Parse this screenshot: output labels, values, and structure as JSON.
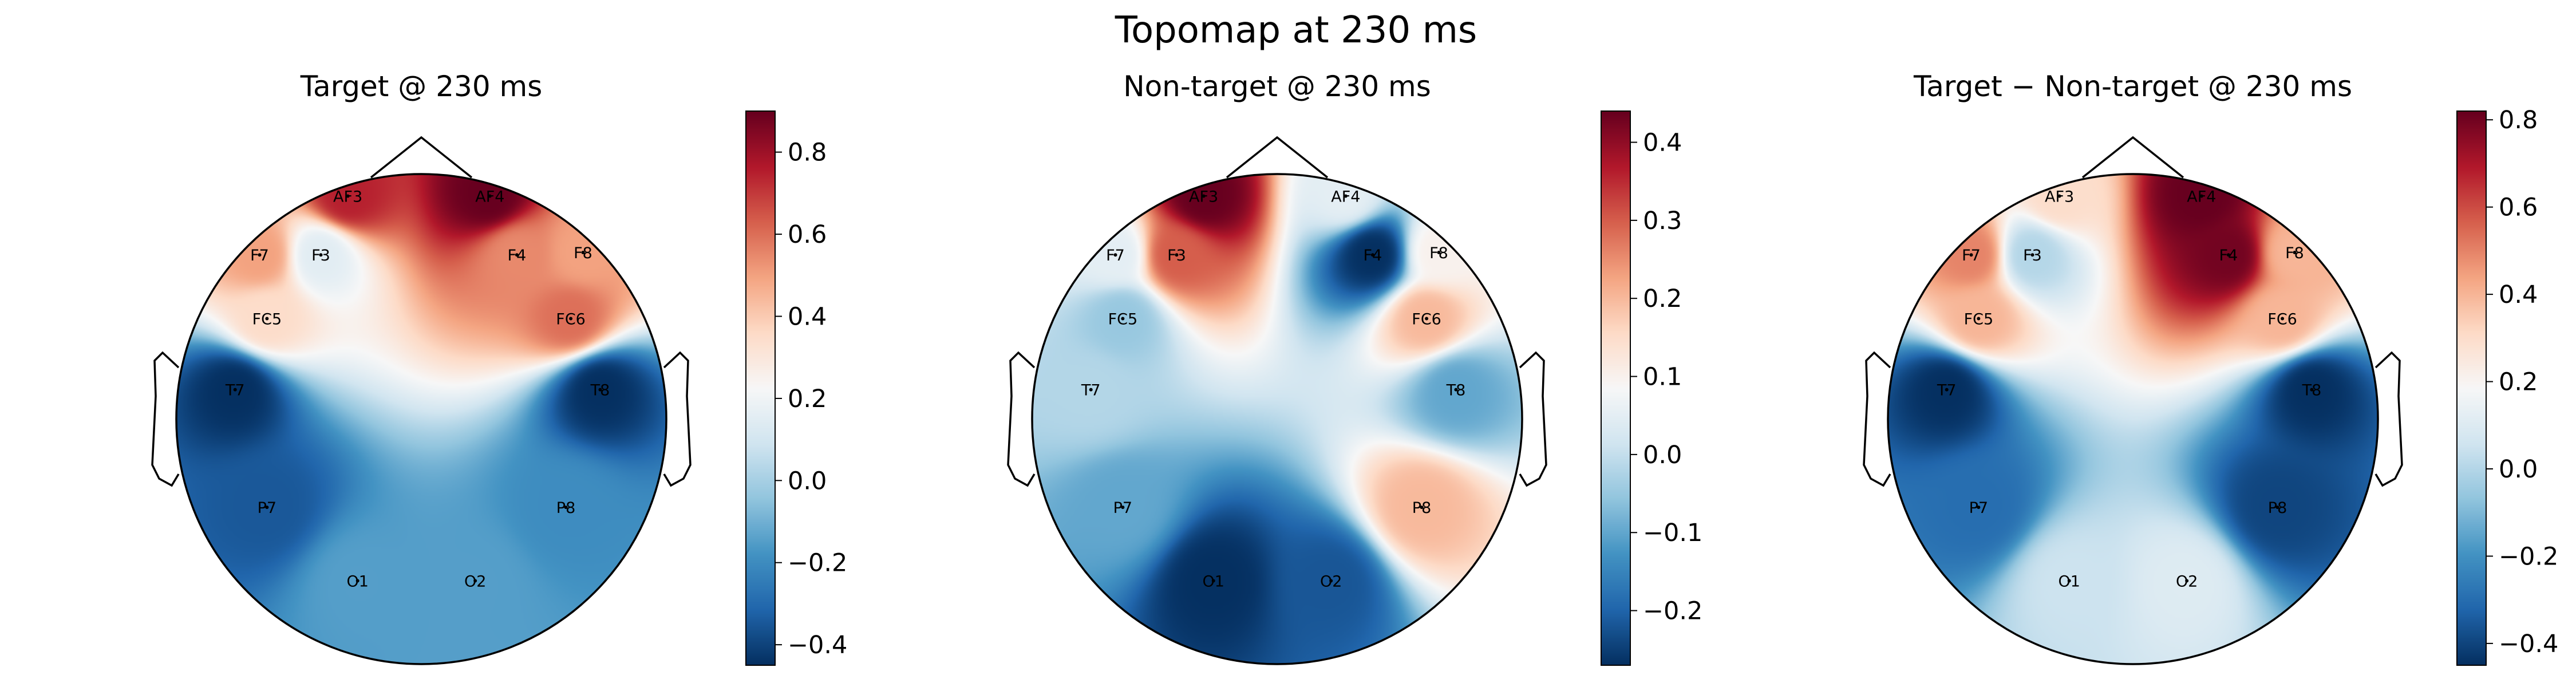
{
  "figure": {
    "title": "Topomap at 230 ms"
  },
  "chart_data": [
    {
      "type": "heatmap",
      "subtype": "topomap",
      "title": "Target @ 230 ms",
      "colormap": "RdBu_r",
      "clim": [
        -0.45,
        0.9
      ],
      "colorbar_ticks": [
        "−0.4",
        "−0.2",
        "0.0",
        "0.2",
        "0.4",
        "0.6",
        "0.8"
      ],
      "colorbar_tick_values": [
        -0.4,
        -0.2,
        0.0,
        0.2,
        0.4,
        0.6,
        0.8
      ],
      "electrodes": [
        {
          "name": "AF3",
          "value": 0.75
        },
        {
          "name": "AF4",
          "value": 0.9
        },
        {
          "name": "F7",
          "value": 0.5
        },
        {
          "name": "F3",
          "value": 0.15
        },
        {
          "name": "F4",
          "value": 0.55
        },
        {
          "name": "F8",
          "value": 0.5
        },
        {
          "name": "FC5",
          "value": 0.35
        },
        {
          "name": "FC6",
          "value": 0.6
        },
        {
          "name": "T7",
          "value": -0.45
        },
        {
          "name": "T8",
          "value": -0.45
        },
        {
          "name": "P7",
          "value": -0.35
        },
        {
          "name": "P8",
          "value": -0.2
        },
        {
          "name": "O1",
          "value": -0.15
        },
        {
          "name": "O2",
          "value": -0.15
        }
      ]
    },
    {
      "type": "heatmap",
      "subtype": "topomap",
      "title": "Non-target @ 230 ms",
      "colormap": "RdBu_r",
      "clim": [
        -0.27,
        0.44
      ],
      "colorbar_ticks": [
        "−0.2",
        "−0.1",
        "0.0",
        "0.1",
        "0.2",
        "0.3",
        "0.4"
      ],
      "colorbar_tick_values": [
        -0.2,
        -0.1,
        0.0,
        0.1,
        0.2,
        0.3,
        0.4
      ],
      "electrodes": [
        {
          "name": "AF3",
          "value": 0.44
        },
        {
          "name": "AF4",
          "value": 0.05
        },
        {
          "name": "F7",
          "value": 0.05
        },
        {
          "name": "F3",
          "value": 0.3
        },
        {
          "name": "F4",
          "value": -0.27
        },
        {
          "name": "F8",
          "value": 0.1
        },
        {
          "name": "FC5",
          "value": -0.05
        },
        {
          "name": "FC6",
          "value": 0.2
        },
        {
          "name": "T7",
          "value": -0.02
        },
        {
          "name": "T8",
          "value": -0.1
        },
        {
          "name": "P7",
          "value": -0.1
        },
        {
          "name": "P8",
          "value": 0.2
        },
        {
          "name": "O1",
          "value": -0.27
        },
        {
          "name": "O2",
          "value": -0.22
        }
      ]
    },
    {
      "type": "heatmap",
      "subtype": "topomap",
      "title": "Target − Non-target @ 230 ms",
      "colormap": "RdBu_r",
      "clim": [
        -0.45,
        0.82
      ],
      "colorbar_ticks": [
        "−0.4",
        "−0.2",
        "0.0",
        "0.2",
        "0.4",
        "0.6",
        "0.8"
      ],
      "colorbar_tick_values": [
        -0.4,
        -0.2,
        0.0,
        0.2,
        0.4,
        0.6,
        0.8
      ],
      "electrodes": [
        {
          "name": "AF3",
          "value": 0.3
        },
        {
          "name": "AF4",
          "value": 0.82
        },
        {
          "name": "F7",
          "value": 0.5
        },
        {
          "name": "F3",
          "value": 0.0
        },
        {
          "name": "F4",
          "value": 0.8
        },
        {
          "name": "F8",
          "value": 0.4
        },
        {
          "name": "FC5",
          "value": 0.4
        },
        {
          "name": "FC6",
          "value": 0.4
        },
        {
          "name": "T7",
          "value": -0.45
        },
        {
          "name": "T8",
          "value": -0.45
        },
        {
          "name": "P7",
          "value": -0.3
        },
        {
          "name": "P8",
          "value": -0.4
        },
        {
          "name": "O1",
          "value": 0.05
        },
        {
          "name": "O2",
          "value": 0.1
        }
      ]
    }
  ]
}
